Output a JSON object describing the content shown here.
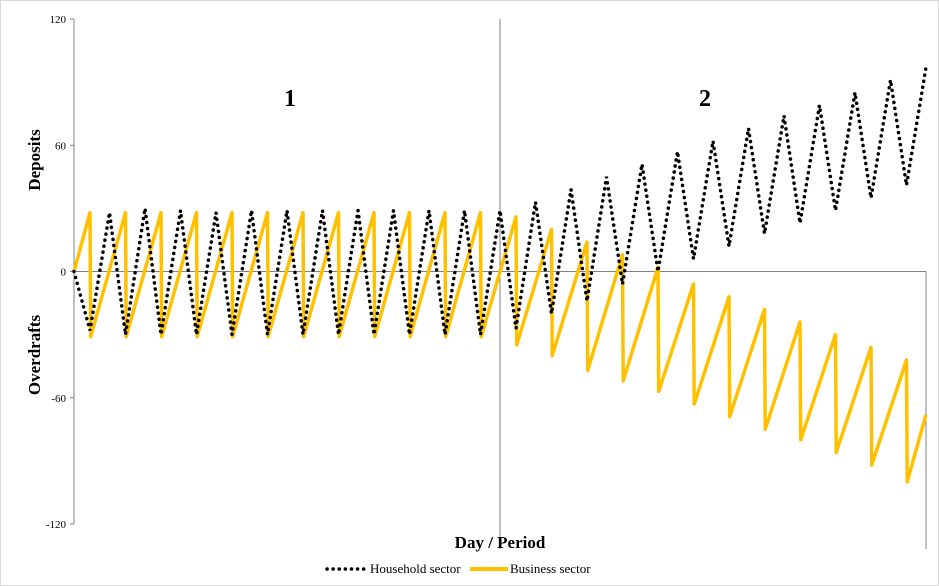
{
  "chart_data": {
    "type": "line",
    "title": "",
    "xlabel": "Day / Period",
    "ylabel_upper": "Deposits",
    "ylabel_lower": "Overdrafts",
    "ylim": [
      -120,
      120
    ],
    "yticks": [
      120,
      60,
      0,
      -60,
      -120
    ],
    "grid": false,
    "legend_position": "bottom-center",
    "region_labels": [
      "1",
      "2"
    ],
    "period_divider_x": 12,
    "x_range": [
      0,
      24
    ],
    "colors": {
      "household": "#000000",
      "business": "#FFC000",
      "axes": "#808080"
    },
    "series": [
      {
        "name": "Household sector",
        "style": "dotted",
        "x": [
          0,
          0.45,
          1,
          1.45,
          2,
          2.45,
          3,
          3.45,
          4,
          4.45,
          5,
          5.45,
          6,
          6.45,
          7,
          7.45,
          8,
          8.45,
          9,
          9.45,
          10,
          10.45,
          11,
          11.45,
          12,
          12.45,
          13,
          13.45,
          14,
          14.45,
          15,
          15.45,
          16,
          16.45,
          17,
          17.45,
          18,
          18.45,
          19,
          19.45,
          20,
          20.45,
          21,
          21.45,
          22,
          22.45,
          23,
          23.45,
          24
        ],
        "values": [
          0,
          -28,
          28,
          -30,
          30,
          -30,
          29,
          -30,
          28,
          -30,
          29,
          -30,
          29,
          -30,
          29,
          -30,
          29,
          -30,
          29,
          -30,
          29,
          -30,
          29,
          -30,
          29,
          -27,
          33,
          -20,
          39,
          -14,
          45,
          -6,
          51,
          0,
          57,
          6,
          62,
          12,
          68,
          18,
          74,
          23,
          79,
          29,
          85,
          35,
          91,
          41,
          97
        ]
      },
      {
        "name": "Business sector",
        "style": "solid",
        "x": [
          0,
          0.45,
          0.47,
          1.45,
          1.47,
          2.45,
          2.47,
          3.45,
          3.47,
          4.45,
          4.47,
          5.45,
          5.47,
          6.45,
          6.47,
          7.45,
          7.47,
          8.45,
          8.47,
          9.45,
          9.47,
          10.45,
          10.47,
          11.45,
          11.47,
          12.45,
          12.47,
          13.45,
          13.47,
          14.45,
          14.47,
          15.45,
          15.47,
          16.45,
          16.47,
          17.45,
          17.47,
          18.45,
          18.47,
          19.45,
          19.47,
          20.45,
          20.47,
          21.45,
          21.47,
          22.45,
          22.47,
          23.45,
          23.47,
          24
        ],
        "values": [
          0,
          28,
          -31,
          28,
          -31,
          28,
          -31,
          28,
          -31,
          28,
          -31,
          28,
          -31,
          28,
          -31,
          28,
          -31,
          28,
          -31,
          28,
          -31,
          28,
          -31,
          28,
          -31,
          26,
          -35,
          20,
          -40,
          14,
          -47,
          8,
          -52,
          2,
          -57,
          -6,
          -63,
          -12,
          -69,
          -18,
          -75,
          -24,
          -80,
          -30,
          -86,
          -36,
          -92,
          -42,
          -100,
          -68
        ]
      }
    ]
  }
}
